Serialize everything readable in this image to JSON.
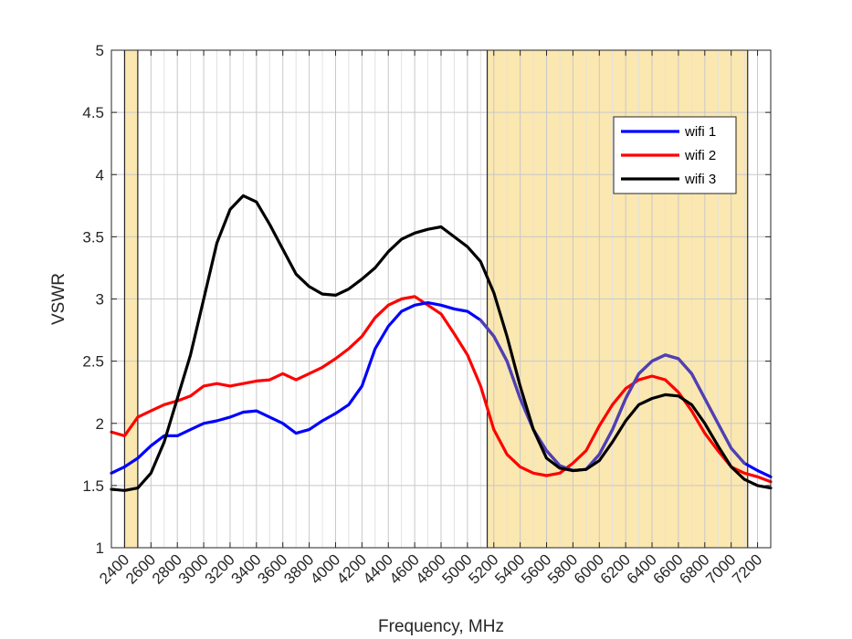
{
  "chart_data": {
    "type": "line",
    "title": "",
    "xlabel": "Frequency, MHz",
    "ylabel": "VSWR",
    "xlim": [
      2300,
      7300
    ],
    "ylim": [
      1,
      5
    ],
    "xticks": [
      2400,
      2600,
      2800,
      3000,
      3200,
      3400,
      3600,
      3800,
      4000,
      4200,
      4400,
      4600,
      4800,
      5000,
      5200,
      5400,
      5600,
      5800,
      6000,
      6200,
      6400,
      6600,
      6800,
      7000,
      7200
    ],
    "xtick_labels": [
      "2400",
      "2600",
      "2800",
      "3000",
      "3200",
      "3400",
      "3600",
      "3800",
      "4000",
      "4200",
      "4400",
      "4600",
      "4800",
      "5000",
      "5200",
      "5400",
      "5600",
      "5800",
      "6000",
      "6200",
      "6400",
      "6600",
      "6800",
      "7000",
      "7200"
    ],
    "yticks": [
      1,
      1.5,
      2,
      2.5,
      3,
      3.5,
      4,
      4.5,
      5
    ],
    "ytick_labels": [
      "1",
      "1.5",
      "2",
      "2.5",
      "3",
      "3.5",
      "4",
      "4.5",
      "5"
    ],
    "grid": true,
    "legend_position": "top-right",
    "highlight_bands": [
      {
        "x_start": 2400,
        "x_end": 2500,
        "color": "#fbe7b0"
      },
      {
        "x_start": 5150,
        "x_end": 7125,
        "color": "#fbe7b0"
      }
    ],
    "series": [
      {
        "name": "wifi 1",
        "color": "#0000ff",
        "color_in_band": "#5040b0",
        "x": [
          2300,
          2400,
          2500,
          2600,
          2700,
          2800,
          2900,
          3000,
          3100,
          3200,
          3300,
          3400,
          3500,
          3600,
          3700,
          3800,
          3900,
          4000,
          4100,
          4200,
          4300,
          4400,
          4500,
          4600,
          4700,
          4800,
          4900,
          5000,
          5100,
          5200,
          5300,
          5400,
          5500,
          5600,
          5700,
          5800,
          5900,
          6000,
          6100,
          6200,
          6300,
          6400,
          6500,
          6600,
          6700,
          6800,
          6900,
          7000,
          7100,
          7200,
          7300
        ],
        "y": [
          1.6,
          1.65,
          1.72,
          1.82,
          1.9,
          1.9,
          1.95,
          2.0,
          2.02,
          2.05,
          2.09,
          2.1,
          2.05,
          2.0,
          1.92,
          1.95,
          2.02,
          2.08,
          2.15,
          2.3,
          2.6,
          2.78,
          2.9,
          2.95,
          2.97,
          2.95,
          2.92,
          2.9,
          2.83,
          2.7,
          2.5,
          2.2,
          1.95,
          1.78,
          1.66,
          1.62,
          1.63,
          1.75,
          1.95,
          2.2,
          2.4,
          2.5,
          2.55,
          2.52,
          2.4,
          2.2,
          2.0,
          1.8,
          1.68,
          1.62,
          1.57
        ]
      },
      {
        "name": "wifi 2",
        "color": "#ff0000",
        "x": [
          2300,
          2400,
          2500,
          2600,
          2700,
          2800,
          2900,
          3000,
          3100,
          3200,
          3300,
          3400,
          3500,
          3600,
          3700,
          3800,
          3900,
          4000,
          4100,
          4200,
          4300,
          4400,
          4500,
          4600,
          4700,
          4800,
          4900,
          5000,
          5100,
          5200,
          5300,
          5400,
          5500,
          5600,
          5700,
          5800,
          5900,
          6000,
          6100,
          6200,
          6300,
          6400,
          6500,
          6600,
          6700,
          6800,
          6900,
          7000,
          7100,
          7200,
          7300
        ],
        "y": [
          1.93,
          1.9,
          2.05,
          2.1,
          2.15,
          2.18,
          2.22,
          2.3,
          2.32,
          2.3,
          2.32,
          2.34,
          2.35,
          2.4,
          2.35,
          2.4,
          2.45,
          2.52,
          2.6,
          2.7,
          2.85,
          2.95,
          3.0,
          3.02,
          2.95,
          2.88,
          2.72,
          2.55,
          2.3,
          1.95,
          1.75,
          1.65,
          1.6,
          1.58,
          1.6,
          1.68,
          1.78,
          1.98,
          2.15,
          2.28,
          2.35,
          2.38,
          2.35,
          2.25,
          2.1,
          1.92,
          1.78,
          1.65,
          1.6,
          1.57,
          1.53
        ]
      },
      {
        "name": "wifi 3",
        "color": "#000000",
        "x": [
          2300,
          2400,
          2500,
          2600,
          2700,
          2800,
          2900,
          3000,
          3100,
          3200,
          3300,
          3400,
          3500,
          3600,
          3700,
          3800,
          3900,
          4000,
          4100,
          4200,
          4300,
          4400,
          4500,
          4600,
          4700,
          4800,
          4900,
          5000,
          5100,
          5200,
          5300,
          5400,
          5500,
          5600,
          5700,
          5800,
          5900,
          6000,
          6100,
          6200,
          6300,
          6400,
          6500,
          6600,
          6700,
          6800,
          6900,
          7000,
          7100,
          7200,
          7300
        ],
        "y": [
          1.47,
          1.46,
          1.48,
          1.6,
          1.85,
          2.2,
          2.55,
          3.0,
          3.45,
          3.72,
          3.83,
          3.78,
          3.6,
          3.4,
          3.2,
          3.1,
          3.04,
          3.03,
          3.08,
          3.16,
          3.25,
          3.38,
          3.48,
          3.53,
          3.56,
          3.58,
          3.5,
          3.42,
          3.3,
          3.05,
          2.7,
          2.3,
          1.95,
          1.72,
          1.64,
          1.62,
          1.63,
          1.7,
          1.85,
          2.02,
          2.15,
          2.2,
          2.23,
          2.22,
          2.15,
          2.0,
          1.82,
          1.65,
          1.55,
          1.5,
          1.48
        ]
      }
    ]
  }
}
